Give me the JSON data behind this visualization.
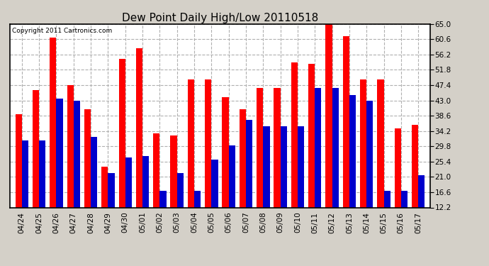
{
  "title": "Dew Point Daily High/Low 20110518",
  "copyright": "Copyright 2011 Cartronics.com",
  "categories": [
    "04/24",
    "04/25",
    "04/26",
    "04/27",
    "04/28",
    "04/29",
    "04/30",
    "05/01",
    "05/02",
    "05/03",
    "05/04",
    "05/05",
    "05/06",
    "05/07",
    "05/08",
    "05/09",
    "05/10",
    "05/11",
    "05/12",
    "05/13",
    "05/14",
    "05/15",
    "05/16",
    "05/17"
  ],
  "high": [
    39.0,
    46.0,
    61.0,
    47.5,
    40.5,
    24.0,
    55.0,
    58.0,
    33.5,
    33.0,
    49.0,
    49.0,
    44.0,
    40.5,
    46.5,
    46.5,
    54.0,
    53.5,
    66.0,
    61.5,
    49.0,
    49.0,
    35.0,
    36.0
  ],
  "low": [
    31.5,
    31.5,
    43.5,
    43.0,
    32.5,
    22.0,
    26.5,
    27.0,
    17.0,
    22.0,
    17.0,
    26.0,
    30.0,
    37.5,
    35.5,
    35.5,
    35.5,
    46.5,
    46.5,
    44.5,
    43.0,
    17.0,
    17.0,
    21.5
  ],
  "high_color": "#ff0000",
  "low_color": "#0000cc",
  "bg_color": "#d4d0c8",
  "plot_bg_color": "#ffffff",
  "grid_color": "#b0b0b0",
  "ylim_min": 12.2,
  "ylim_max": 65.0,
  "yticks": [
    12.2,
    16.6,
    21.0,
    25.4,
    29.8,
    34.2,
    38.6,
    43.0,
    47.4,
    51.8,
    56.2,
    60.6,
    65.0
  ],
  "bar_width": 0.38
}
